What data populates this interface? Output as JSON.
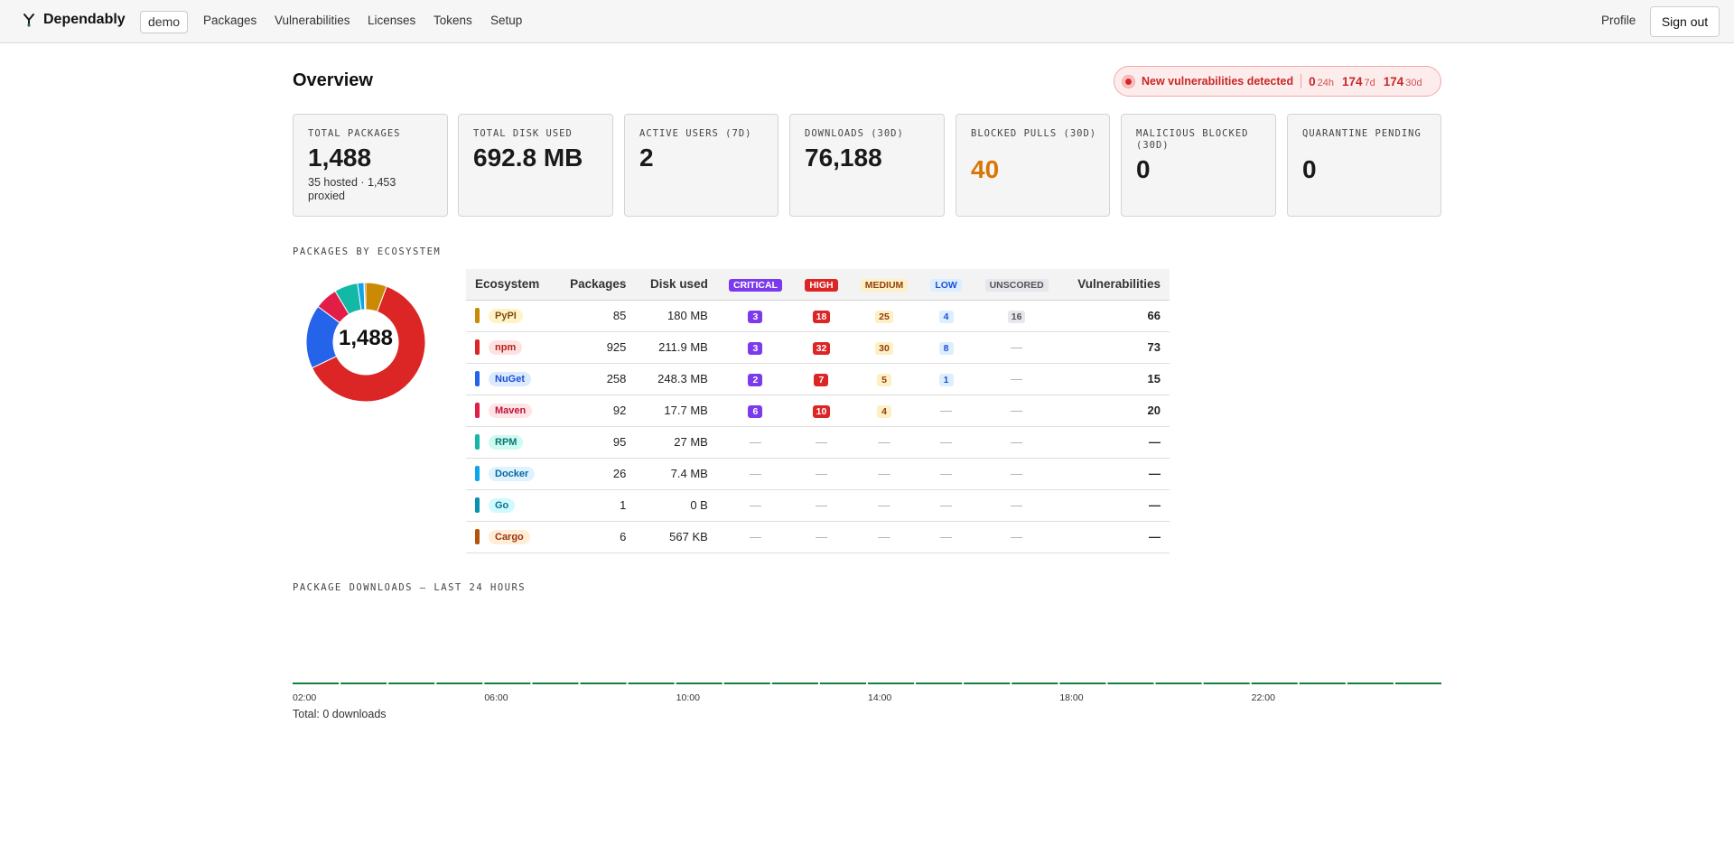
{
  "header": {
    "brand": "Dependably",
    "org": "demo",
    "nav": [
      "Packages",
      "Vulnerabilities",
      "Licenses",
      "Tokens",
      "Setup"
    ],
    "profile": "Profile",
    "sign_out": "Sign out"
  },
  "overview": {
    "title": "Overview",
    "alert": {
      "message": "New vulnerabilities detected",
      "counts": [
        {
          "value": "0",
          "period": "24h"
        },
        {
          "value": "174",
          "period": "7d"
        },
        {
          "value": "174",
          "period": "30d"
        }
      ]
    }
  },
  "stats": [
    {
      "label": "TOTAL PACKAGES",
      "value": "1,488",
      "sub": "35 hosted · 1,453 proxied",
      "color": "#1a1a1a"
    },
    {
      "label": "TOTAL DISK USED",
      "value": "692.8 MB",
      "sub": "",
      "color": "#1a1a1a"
    },
    {
      "label": "ACTIVE USERS (7D)",
      "value": "2",
      "sub": "",
      "color": "#1a1a1a"
    },
    {
      "label": "DOWNLOADS (30D)",
      "value": "76,188",
      "sub": "",
      "color": "#1a1a1a"
    },
    {
      "label": "BLOCKED PULLS (30D)",
      "value": "40",
      "sub": "",
      "color": "#d97706"
    },
    {
      "label": "MALICIOUS BLOCKED (30D)",
      "value": "0",
      "sub": "",
      "color": "#1a1a1a"
    },
    {
      "label": "QUARANTINE PENDING",
      "value": "0",
      "sub": "",
      "color": "#1a1a1a"
    }
  ],
  "ecosystems_section": {
    "title": "PACKAGES BY ECOSYSTEM",
    "donut_total": "1,488",
    "columns": [
      "Ecosystem",
      "Packages",
      "Disk used",
      "CRITICAL",
      "HIGH",
      "MEDIUM",
      "LOW",
      "UNSCORED",
      "Vulnerabilities"
    ],
    "rows": [
      {
        "name": "PyPI",
        "color": "#ca8a04",
        "pill_bg": "#fef3c7",
        "pill_fg": "#854d0e",
        "packages": "85",
        "disk": "180 MB",
        "critical": "3",
        "high": "18",
        "medium": "25",
        "low": "4",
        "unscored": "16",
        "total": "66"
      },
      {
        "name": "npm",
        "color": "#dc2626",
        "pill_bg": "#fee2e2",
        "pill_fg": "#b91c1c",
        "packages": "925",
        "disk": "211.9 MB",
        "critical": "3",
        "high": "32",
        "medium": "30",
        "low": "8",
        "unscored": "—",
        "total": "73"
      },
      {
        "name": "NuGet",
        "color": "#2563eb",
        "pill_bg": "#dbeafe",
        "pill_fg": "#1d4ed8",
        "packages": "258",
        "disk": "248.3 MB",
        "critical": "2",
        "high": "7",
        "medium": "5",
        "low": "1",
        "unscored": "—",
        "total": "15"
      },
      {
        "name": "Maven",
        "color": "#e11d48",
        "pill_bg": "#ffe4e6",
        "pill_fg": "#be123c",
        "packages": "92",
        "disk": "17.7 MB",
        "critical": "6",
        "high": "10",
        "medium": "4",
        "low": "—",
        "unscored": "—",
        "total": "20"
      },
      {
        "name": "RPM",
        "color": "#14b8a6",
        "pill_bg": "#ccfbf1",
        "pill_fg": "#0f766e",
        "packages": "95",
        "disk": "27 MB",
        "critical": "—",
        "high": "—",
        "medium": "—",
        "low": "—",
        "unscored": "—",
        "total": "—"
      },
      {
        "name": "Docker",
        "color": "#0ea5e9",
        "pill_bg": "#e0f2fe",
        "pill_fg": "#0369a1",
        "packages": "26",
        "disk": "7.4 MB",
        "critical": "—",
        "high": "—",
        "medium": "—",
        "low": "—",
        "unscored": "—",
        "total": "—"
      },
      {
        "name": "Go",
        "color": "#0891b2",
        "pill_bg": "#cffafe",
        "pill_fg": "#0e7490",
        "packages": "1",
        "disk": "0 B",
        "critical": "—",
        "high": "—",
        "medium": "—",
        "low": "—",
        "unscored": "—",
        "total": "—"
      },
      {
        "name": "Cargo",
        "color": "#b45309",
        "pill_bg": "#ffedd5",
        "pill_fg": "#9a3412",
        "packages": "6",
        "disk": "567 KB",
        "critical": "—",
        "high": "—",
        "medium": "—",
        "low": "—",
        "unscored": "—",
        "total": "—"
      }
    ]
  },
  "chart_data": {
    "type": "bar",
    "title": "PACKAGE DOWNLOADS — LAST 24 HOURS",
    "tick_labels": [
      "02:00",
      "06:00",
      "10:00",
      "14:00",
      "18:00",
      "22:00"
    ],
    "values": [
      0,
      0,
      0,
      0,
      0,
      0,
      0,
      0,
      0,
      0,
      0,
      0,
      0,
      0,
      0,
      0,
      0,
      0,
      0,
      0,
      0,
      0,
      0,
      0
    ],
    "bar_color": "#15803d",
    "footer": "Total: 0 downloads"
  },
  "donut_chart": {
    "type": "pie",
    "categories": [
      "PyPI",
      "npm",
      "NuGet",
      "Maven",
      "RPM",
      "Docker",
      "Go",
      "Cargo"
    ],
    "values": [
      85,
      925,
      258,
      92,
      95,
      26,
      1,
      6
    ]
  }
}
